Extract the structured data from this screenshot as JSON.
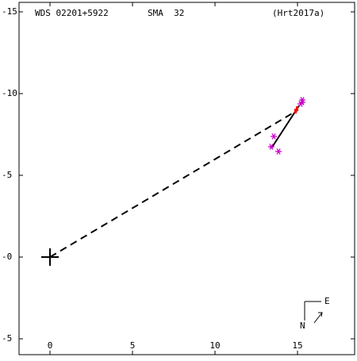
{
  "chart_data": {
    "type": "scatter",
    "title": "WDS 02201+5922",
    "subtitle": "SMA  32",
    "reference": "(Hrt2017a)",
    "compass": {
      "east": "E",
      "north": "N"
    },
    "xlim": [
      -1.875,
      18.46
    ],
    "ylim": [
      -5.97,
      15.58
    ],
    "xticks": [
      0,
      5,
      10,
      15
    ],
    "yticks": [
      {
        "value": 15,
        "label": "-15"
      },
      {
        "value": 10,
        "label": "-10"
      },
      {
        "value": 5,
        "label": "-5"
      },
      {
        "value": 0,
        "label": "-0"
      },
      {
        "value": -5,
        "label": "-5"
      }
    ],
    "lines": [
      {
        "color": "#000000",
        "style": "dashed",
        "x": [
          0,
          15.0
        ],
        "values": [
          0,
          8.98
        ]
      },
      {
        "color": "#000000",
        "style": "solid",
        "x": [
          13.41,
          15.1
        ],
        "values": [
          6.65,
          9.27
        ]
      }
    ],
    "series": [
      {
        "color": "#cc00cc",
        "marker": "asterisk",
        "x": [
          15.29,
          15.29,
          15.19,
          13.56,
          13.41,
          13.85
        ],
        "values": [
          9.61,
          9.47,
          9.37,
          7.38,
          6.75,
          6.46
        ]
      },
      {
        "color": "#ff0000",
        "marker": "dash",
        "x": [
          15.0,
          14.9
        ],
        "values": [
          9.08,
          8.93
        ]
      },
      {
        "color": "#000000",
        "marker": "plus",
        "x": [
          0
        ],
        "values": [
          0
        ]
      }
    ]
  }
}
